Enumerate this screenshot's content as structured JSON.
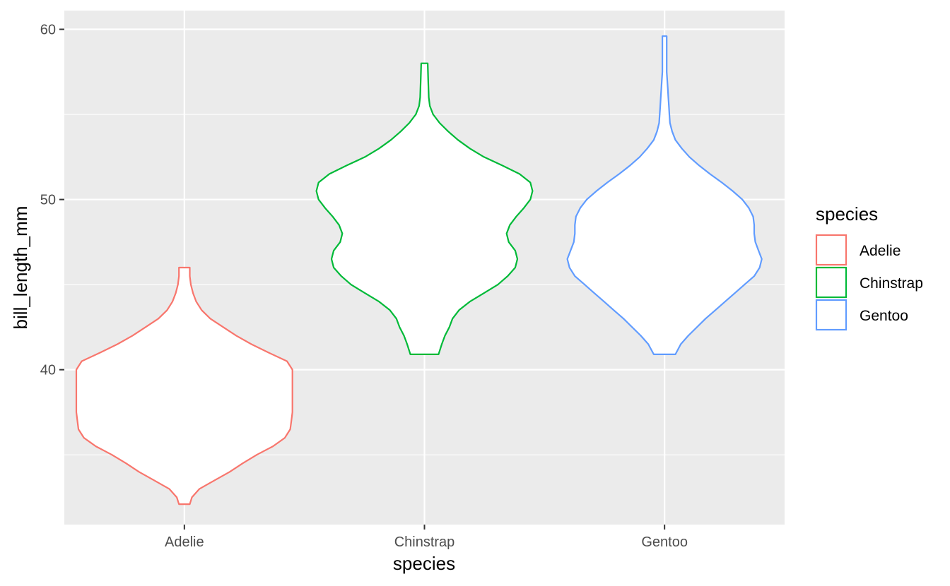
{
  "chart_data": {
    "type": "violin",
    "title": "",
    "xlabel": "species",
    "ylabel": "bill_length_mm",
    "categories": [
      "Adelie",
      "Chinstrap",
      "Gentoo"
    ],
    "ylim": [
      30.9,
      61.1
    ],
    "yticks": [
      40,
      50,
      60
    ],
    "ytick_labels": [
      "40",
      "50",
      "60"
    ],
    "grid": true,
    "legend": {
      "title": "species",
      "position": "right",
      "entries": [
        "Adelie",
        "Chinstrap",
        "Gentoo"
      ]
    },
    "series": [
      {
        "name": "Adelie",
        "color": "#F8766D",
        "min": 32.1,
        "max": 46.0,
        "density": [
          [
            32.1,
            0.05
          ],
          [
            32.5,
            0.07
          ],
          [
            33.0,
            0.14
          ],
          [
            33.5,
            0.28
          ],
          [
            34.0,
            0.42
          ],
          [
            34.5,
            0.54
          ],
          [
            35.0,
            0.67
          ],
          [
            35.5,
            0.82
          ],
          [
            36.0,
            0.93
          ],
          [
            36.5,
            0.98
          ],
          [
            37.0,
            0.99
          ],
          [
            37.5,
            1.0
          ],
          [
            38.0,
            1.0
          ],
          [
            38.5,
            1.0
          ],
          [
            39.0,
            1.0
          ],
          [
            39.5,
            1.0
          ],
          [
            40.0,
            1.0
          ],
          [
            40.5,
            0.95
          ],
          [
            41.0,
            0.78
          ],
          [
            41.5,
            0.62
          ],
          [
            42.0,
            0.48
          ],
          [
            42.5,
            0.36
          ],
          [
            43.0,
            0.24
          ],
          [
            43.5,
            0.16
          ],
          [
            44.0,
            0.11
          ],
          [
            44.5,
            0.08
          ],
          [
            45.0,
            0.06
          ],
          [
            45.5,
            0.05
          ],
          [
            46.0,
            0.05
          ]
        ]
      },
      {
        "name": "Chinstrap",
        "color": "#00BA38",
        "min": 40.9,
        "max": 58.0,
        "density": [
          [
            40.9,
            0.13
          ],
          [
            41.5,
            0.16
          ],
          [
            42.0,
            0.19
          ],
          [
            42.5,
            0.23
          ],
          [
            43.0,
            0.26
          ],
          [
            43.5,
            0.32
          ],
          [
            44.0,
            0.42
          ],
          [
            44.5,
            0.55
          ],
          [
            45.0,
            0.68
          ],
          [
            45.5,
            0.77
          ],
          [
            46.0,
            0.84
          ],
          [
            46.5,
            0.86
          ],
          [
            47.0,
            0.84
          ],
          [
            47.5,
            0.78
          ],
          [
            48.0,
            0.76
          ],
          [
            48.5,
            0.79
          ],
          [
            49.0,
            0.85
          ],
          [
            49.5,
            0.92
          ],
          [
            50.0,
            0.98
          ],
          [
            50.5,
            1.0
          ],
          [
            51.0,
            0.98
          ],
          [
            51.5,
            0.88
          ],
          [
            52.0,
            0.72
          ],
          [
            52.5,
            0.55
          ],
          [
            53.0,
            0.42
          ],
          [
            53.5,
            0.31
          ],
          [
            54.0,
            0.22
          ],
          [
            54.5,
            0.14
          ],
          [
            55.0,
            0.08
          ],
          [
            55.5,
            0.05
          ],
          [
            56.0,
            0.04
          ],
          [
            57.0,
            0.035
          ],
          [
            58.0,
            0.03
          ]
        ]
      },
      {
        "name": "Gentoo",
        "color": "#619CFF",
        "min": 40.9,
        "max": 59.6,
        "density": [
          [
            40.9,
            0.1
          ],
          [
            41.5,
            0.15
          ],
          [
            42.0,
            0.22
          ],
          [
            42.5,
            0.3
          ],
          [
            43.0,
            0.38
          ],
          [
            43.5,
            0.47
          ],
          [
            44.0,
            0.56
          ],
          [
            44.5,
            0.65
          ],
          [
            45.0,
            0.74
          ],
          [
            45.5,
            0.83
          ],
          [
            46.0,
            0.88
          ],
          [
            46.5,
            0.9
          ],
          [
            47.0,
            0.87
          ],
          [
            47.5,
            0.84
          ],
          [
            48.0,
            0.83
          ],
          [
            48.5,
            0.83
          ],
          [
            49.0,
            0.82
          ],
          [
            49.5,
            0.78
          ],
          [
            50.0,
            0.72
          ],
          [
            50.5,
            0.63
          ],
          [
            51.0,
            0.53
          ],
          [
            51.5,
            0.42
          ],
          [
            52.0,
            0.32
          ],
          [
            52.5,
            0.23
          ],
          [
            53.0,
            0.16
          ],
          [
            53.5,
            0.1
          ],
          [
            54.0,
            0.07
          ],
          [
            54.5,
            0.05
          ],
          [
            55.0,
            0.045
          ],
          [
            55.5,
            0.04
          ],
          [
            56.0,
            0.035
          ],
          [
            56.5,
            0.03
          ],
          [
            57.0,
            0.025
          ],
          [
            57.5,
            0.02
          ],
          [
            58.0,
            0.02
          ],
          [
            59.0,
            0.02
          ],
          [
            59.6,
            0.02
          ]
        ]
      }
    ]
  }
}
